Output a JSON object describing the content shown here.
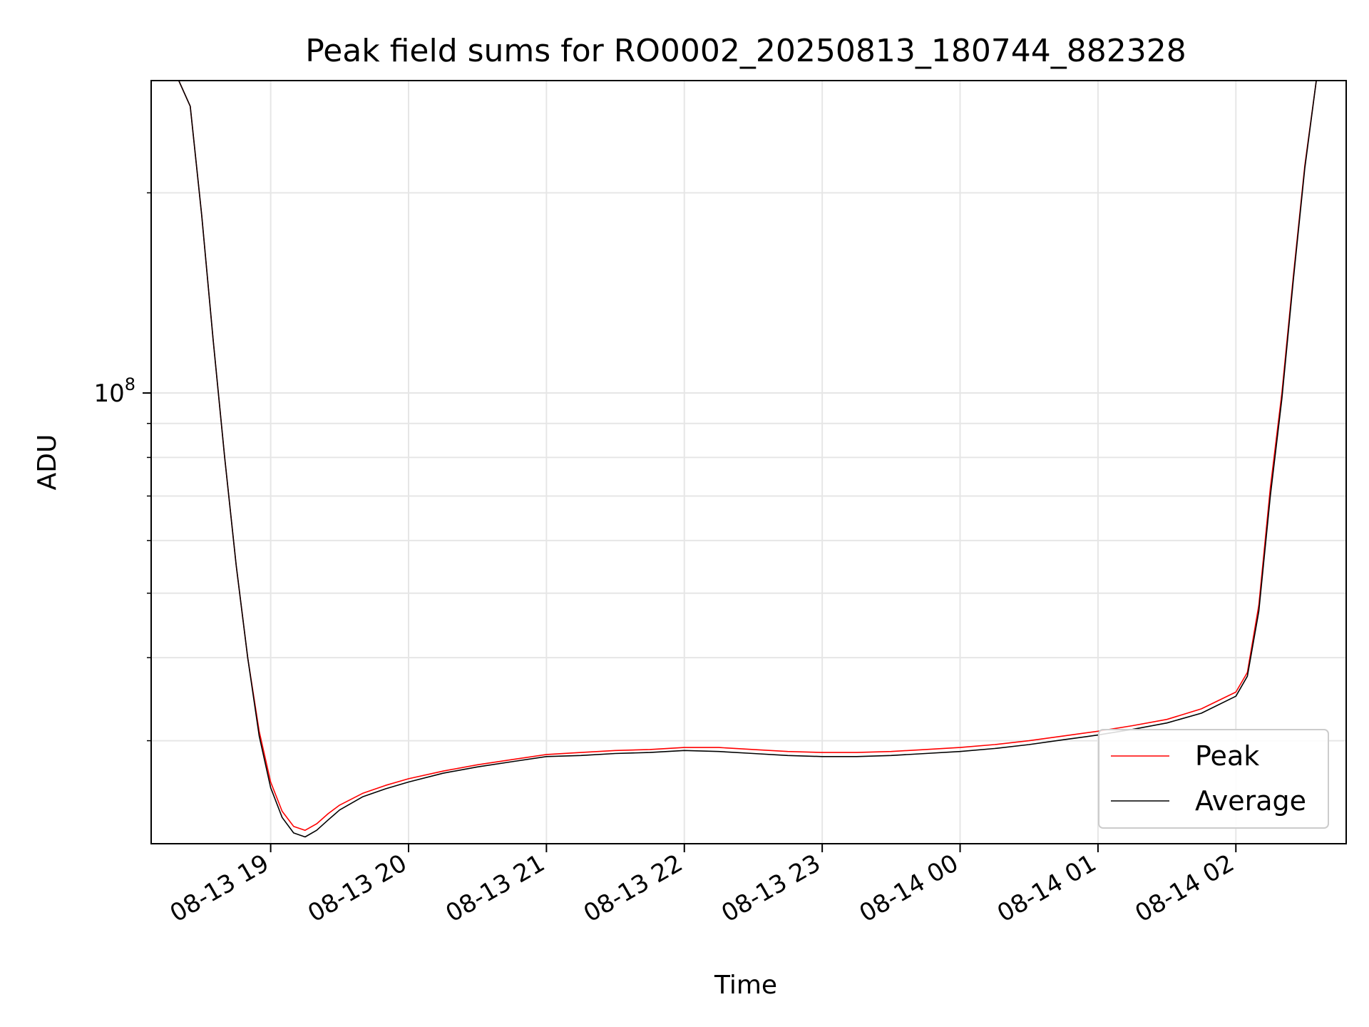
{
  "chart_data": {
    "type": "line",
    "title": "Peak field sums for RO0002_20250813_180744_882328",
    "xlabel": "Time",
    "ylabel": "ADU",
    "x_scale": "time",
    "y_scale": "log",
    "grid": true,
    "legend_position": "bottom-right",
    "xlim": [
      "2025-08-13 18:08",
      "2025-08-14 02:48"
    ],
    "ylim": [
      21000000,
      295000000
    ],
    "x_ticks": [
      "2025-08-13 19:00",
      "2025-08-13 20:00",
      "2025-08-13 21:00",
      "2025-08-13 22:00",
      "2025-08-13 23:00",
      "2025-08-14 00:00",
      "2025-08-14 01:00",
      "2025-08-14 02:00"
    ],
    "x_tick_labels": [
      "08-13 19",
      "08-13 20",
      "08-13 21",
      "08-13 22",
      "08-13 23",
      "08-14 00",
      "08-14 01",
      "08-14 02"
    ],
    "y_ticks": [
      100000000
    ],
    "y_tick_labels": [
      "10",
      "8"
    ],
    "series": [
      {
        "name": "Peak",
        "color": "#ff0000",
        "x": [
          "2025-08-13 18:20",
          "2025-08-13 18:25",
          "2025-08-13 18:30",
          "2025-08-13 18:35",
          "2025-08-13 18:40",
          "2025-08-13 18:45",
          "2025-08-13 18:50",
          "2025-08-13 18:55",
          "2025-08-13 19:00",
          "2025-08-13 19:05",
          "2025-08-13 19:10",
          "2025-08-13 19:15",
          "2025-08-13 19:20",
          "2025-08-13 19:25",
          "2025-08-13 19:30",
          "2025-08-13 19:40",
          "2025-08-13 19:50",
          "2025-08-13 20:00",
          "2025-08-13 20:15",
          "2025-08-13 20:30",
          "2025-08-13 20:45",
          "2025-08-13 21:00",
          "2025-08-13 21:15",
          "2025-08-13 21:30",
          "2025-08-13 21:45",
          "2025-08-13 22:00",
          "2025-08-13 22:15",
          "2025-08-13 22:30",
          "2025-08-13 22:45",
          "2025-08-13 23:00",
          "2025-08-13 23:15",
          "2025-08-13 23:30",
          "2025-08-13 23:45",
          "2025-08-14 00:00",
          "2025-08-14 00:15",
          "2025-08-14 00:30",
          "2025-08-14 00:45",
          "2025-08-14 01:00",
          "2025-08-14 01:15",
          "2025-08-14 01:30",
          "2025-08-14 01:45",
          "2025-08-14 02:00",
          "2025-08-14 02:05",
          "2025-08-14 02:10",
          "2025-08-14 02:15",
          "2025-08-14 02:20",
          "2025-08-14 02:25",
          "2025-08-14 02:30",
          "2025-08-14 02:35"
        ],
        "values": [
          295000000,
          270000000,
          185000000,
          120000000,
          80000000,
          55000000,
          40000000,
          31000000,
          26000000,
          23500000,
          22300000,
          22000000,
          22500000,
          23300000,
          24000000,
          25000000,
          25700000,
          26300000,
          27000000,
          27600000,
          28100000,
          28600000,
          28800000,
          29000000,
          29100000,
          29300000,
          29300000,
          29100000,
          28900000,
          28800000,
          28800000,
          28900000,
          29100000,
          29300000,
          29600000,
          30000000,
          30500000,
          31000000,
          31600000,
          32300000,
          33500000,
          35500000,
          38000000,
          48000000,
          72000000,
          100000000,
          150000000,
          220000000,
          295000000
        ]
      },
      {
        "name": "Average",
        "color": "#000000",
        "x": [
          "2025-08-13 18:20",
          "2025-08-13 18:25",
          "2025-08-13 18:30",
          "2025-08-13 18:35",
          "2025-08-13 18:40",
          "2025-08-13 18:45",
          "2025-08-13 18:50",
          "2025-08-13 18:55",
          "2025-08-13 19:00",
          "2025-08-13 19:05",
          "2025-08-13 19:10",
          "2025-08-13 19:15",
          "2025-08-13 19:20",
          "2025-08-13 19:25",
          "2025-08-13 19:30",
          "2025-08-13 19:40",
          "2025-08-13 19:50",
          "2025-08-13 20:00",
          "2025-08-13 20:15",
          "2025-08-13 20:30",
          "2025-08-13 20:45",
          "2025-08-13 21:00",
          "2025-08-13 21:15",
          "2025-08-13 21:30",
          "2025-08-13 21:45",
          "2025-08-13 22:00",
          "2025-08-13 22:15",
          "2025-08-13 22:30",
          "2025-08-13 22:45",
          "2025-08-13 23:00",
          "2025-08-13 23:15",
          "2025-08-13 23:30",
          "2025-08-13 23:45",
          "2025-08-14 00:00",
          "2025-08-14 00:15",
          "2025-08-14 00:30",
          "2025-08-14 00:45",
          "2025-08-14 01:00",
          "2025-08-14 01:15",
          "2025-08-14 01:30",
          "2025-08-14 01:45",
          "2025-08-14 02:00",
          "2025-08-14 02:05",
          "2025-08-14 02:10",
          "2025-08-14 02:15",
          "2025-08-14 02:20",
          "2025-08-14 02:25",
          "2025-08-14 02:30",
          "2025-08-14 02:35"
        ],
        "values": [
          295000000,
          270000000,
          185000000,
          120000000,
          80000000,
          55000000,
          40000000,
          30500000,
          25500000,
          23000000,
          21800000,
          21500000,
          22000000,
          22800000,
          23600000,
          24700000,
          25400000,
          26000000,
          26800000,
          27400000,
          27900000,
          28400000,
          28500000,
          28700000,
          28800000,
          29000000,
          28900000,
          28700000,
          28500000,
          28400000,
          28400000,
          28500000,
          28700000,
          28900000,
          29200000,
          29600000,
          30100000,
          30600000,
          31200000,
          31900000,
          33000000,
          35000000,
          37500000,
          47000000,
          70000000,
          98000000,
          148000000,
          218000000,
          295000000
        ]
      }
    ]
  }
}
